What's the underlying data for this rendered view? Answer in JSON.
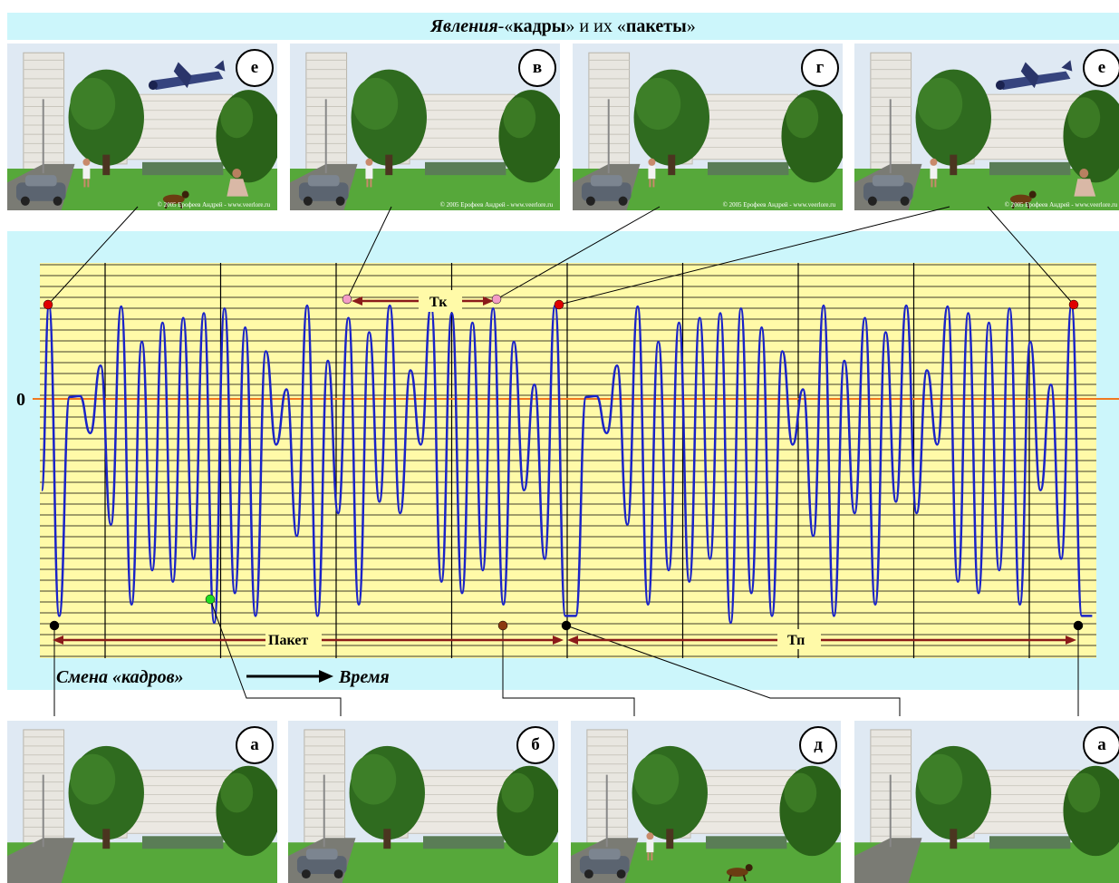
{
  "title": {
    "part1": "Явления",
    "part2": "-«",
    "part3": "кадры",
    "part4": "» и их «",
    "part5": "пакеты",
    "part6": "»"
  },
  "top_frames": [
    {
      "letter": "е",
      "plane": true,
      "dog": true,
      "girl": true,
      "woman": true,
      "car": true,
      "credit": "© 2005 Ерофеев Андрей - www.veerlore.ru"
    },
    {
      "letter": "в",
      "plane": false,
      "dog": false,
      "girl": true,
      "woman": false,
      "car": true,
      "credit": "© 2005 Ерофеев Андрей - www.veerlore.ru"
    },
    {
      "letter": "г",
      "plane": false,
      "dog": false,
      "girl": true,
      "woman": false,
      "car": true,
      "credit": "© 2005 Ерофеев Андрей - www.veerlore.ru"
    },
    {
      "letter": "е",
      "plane": true,
      "dog": true,
      "girl": true,
      "woman": true,
      "car": true,
      "credit": "© 2005 Ерофеев Андрей - www.veerlore.ru"
    }
  ],
  "bottom_frames": [
    {
      "letter": "а",
      "plane": false,
      "dog": false,
      "girl": false,
      "woman": false,
      "car": false
    },
    {
      "letter": "б",
      "plane": false,
      "dog": false,
      "girl": false,
      "woman": false,
      "car": true
    },
    {
      "letter": "д",
      "plane": false,
      "dog": true,
      "girl": true,
      "woman": false,
      "car": true
    },
    {
      "letter": "а",
      "plane": false,
      "dog": false,
      "girl": false,
      "woman": false,
      "car": false
    }
  ],
  "labels": {
    "zero": "0",
    "tk": "Тк",
    "packet": "Пакет",
    "tp": "Тп",
    "frame_change": "Смена «кадров»",
    "time": "Время"
  },
  "colors": {
    "panel": "#ccf6fb",
    "plot": "#fffaa8",
    "grid": "#000000",
    "wave": "#1a23c8",
    "zero_line": "#f07820",
    "arrow": "#8b1a1a",
    "marker_e": "#e00000",
    "marker_v": "#f39cc6",
    "marker_a": "#000000",
    "marker_b": "#8b3a10",
    "marker_green": "#22dd22"
  },
  "chart_data": {
    "type": "line",
    "title": "",
    "xlabel": "Время",
    "ylabel": "",
    "ylim": [
      -1,
      1
    ],
    "x_range": [
      0,
      2
    ],
    "period_label": "Тп",
    "period": 1,
    "grid": true,
    "series": [
      {
        "name": "",
        "x": [
          0.0,
          0.02,
          0.04,
          0.06,
          0.08,
          0.1,
          0.12,
          0.14,
          0.16,
          0.18,
          0.2,
          0.22,
          0.24,
          0.26,
          0.28,
          0.3,
          0.32,
          0.34,
          0.36,
          0.38,
          0.4,
          0.42,
          0.44,
          0.46,
          0.48,
          0.5,
          0.52,
          0.54,
          0.56,
          0.58,
          0.6,
          0.62,
          0.64,
          0.66,
          0.68,
          0.7,
          0.72,
          0.74,
          0.76,
          0.78,
          0.8,
          0.82,
          0.84,
          0.86,
          0.88,
          0.9,
          0.92,
          0.94,
          0.96,
          0.98,
          1.0
        ],
        "y": [
          0.98,
          -0.95,
          0.02,
          0.03,
          -0.15,
          0.35,
          -0.55,
          0.97,
          -0.9,
          0.6,
          -0.75,
          0.8,
          -0.8,
          0.85,
          -0.7,
          0.9,
          -0.98,
          0.95,
          -0.85,
          0.75,
          -0.95,
          0.5,
          -0.2,
          0.1,
          -0.6,
          0.98,
          -0.95,
          0.4,
          -0.5,
          0.85,
          -0.9,
          0.7,
          -0.45,
          0.98,
          -0.5,
          0.3,
          -0.2,
          0.97,
          -0.8,
          0.9,
          -0.85,
          0.8,
          -0.75,
          0.95,
          -0.9,
          0.6,
          -0.4,
          0.15,
          -0.7,
          0.98,
          -0.95
        ]
      }
    ],
    "markers": [
      {
        "frame": "е",
        "x": 0.0,
        "y": 0.98
      },
      {
        "frame": "а",
        "x": 0.005,
        "y": -0.95
      },
      {
        "frame": "в",
        "x": 0.29,
        "y": 0.98
      },
      {
        "frame": "г",
        "x": 0.43,
        "y": 0.98
      },
      {
        "frame": "б",
        "x": 0.44,
        "y": -0.95
      },
      {
        "frame": "д",
        "x": 0.5,
        "y": -0.95
      },
      {
        "frame": "е",
        "x": 0.49,
        "y": 0.98
      },
      {
        "frame": "а",
        "x": 0.99,
        "y": -0.95
      }
    ]
  }
}
